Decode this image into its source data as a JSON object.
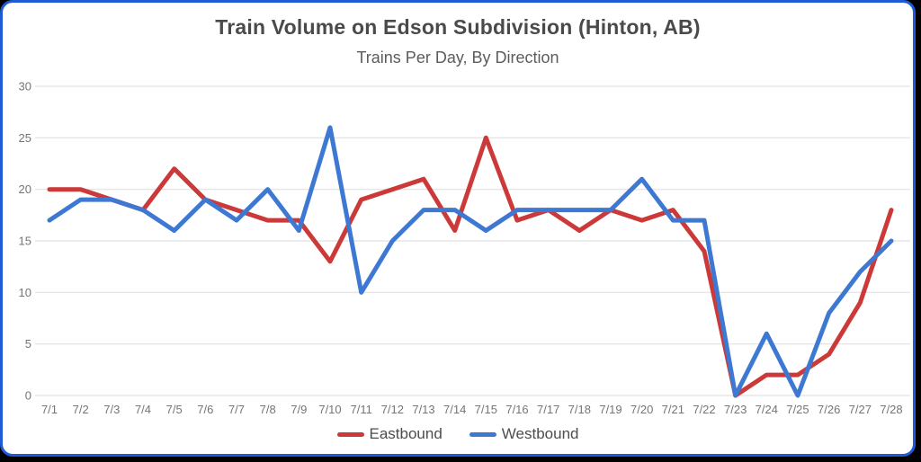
{
  "frame": {
    "border_color": "#1e5bd6",
    "background_color": "#ffffff"
  },
  "header": {
    "title": "Train Volume on Edson Subdivision (Hinton, AB)",
    "subtitle": "Trains Per Day, By Direction"
  },
  "legend": [
    {
      "label": "Eastbound",
      "color": "#cc3939"
    },
    {
      "label": "Westbound",
      "color": "#3d78d2"
    }
  ],
  "chart_data": {
    "type": "line",
    "title": "Train Volume on Edson Subdivision (Hinton, AB)",
    "subtitle": "Trains Per Day, By Direction",
    "categories": [
      "7/1",
      "7/2",
      "7/3",
      "7/4",
      "7/5",
      "7/6",
      "7/7",
      "7/8",
      "7/9",
      "7/10",
      "7/11",
      "7/12",
      "7/13",
      "7/14",
      "7/15",
      "7/16",
      "7/17",
      "7/18",
      "7/19",
      "7/20",
      "7/21",
      "7/22",
      "7/23",
      "7/24",
      "7/25",
      "7/26",
      "7/27",
      "7/28"
    ],
    "series": [
      {
        "name": "Eastbound",
        "color": "#cc3939",
        "values": [
          20,
          20,
          19,
          18,
          22,
          19,
          18,
          17,
          17,
          13,
          19,
          20,
          21,
          16,
          25,
          17,
          18,
          16,
          18,
          17,
          18,
          14,
          0,
          2,
          2,
          4,
          9,
          18
        ]
      },
      {
        "name": "Westbound",
        "color": "#3d78d2",
        "values": [
          17,
          19,
          19,
          18,
          16,
          19,
          17,
          20,
          16,
          26,
          10,
          15,
          18,
          18,
          16,
          18,
          18,
          18,
          18,
          21,
          17,
          17,
          0,
          6,
          0,
          8,
          12,
          15
        ]
      }
    ],
    "xlabel": "",
    "ylabel": "",
    "ylim": [
      0,
      30
    ],
    "yticks": [
      0,
      5,
      10,
      15,
      20,
      25,
      30
    ],
    "grid": "horizontal",
    "gridline_color": "#e6e6e6",
    "axis_label_color": "#757575",
    "legend_position": "bottom"
  }
}
